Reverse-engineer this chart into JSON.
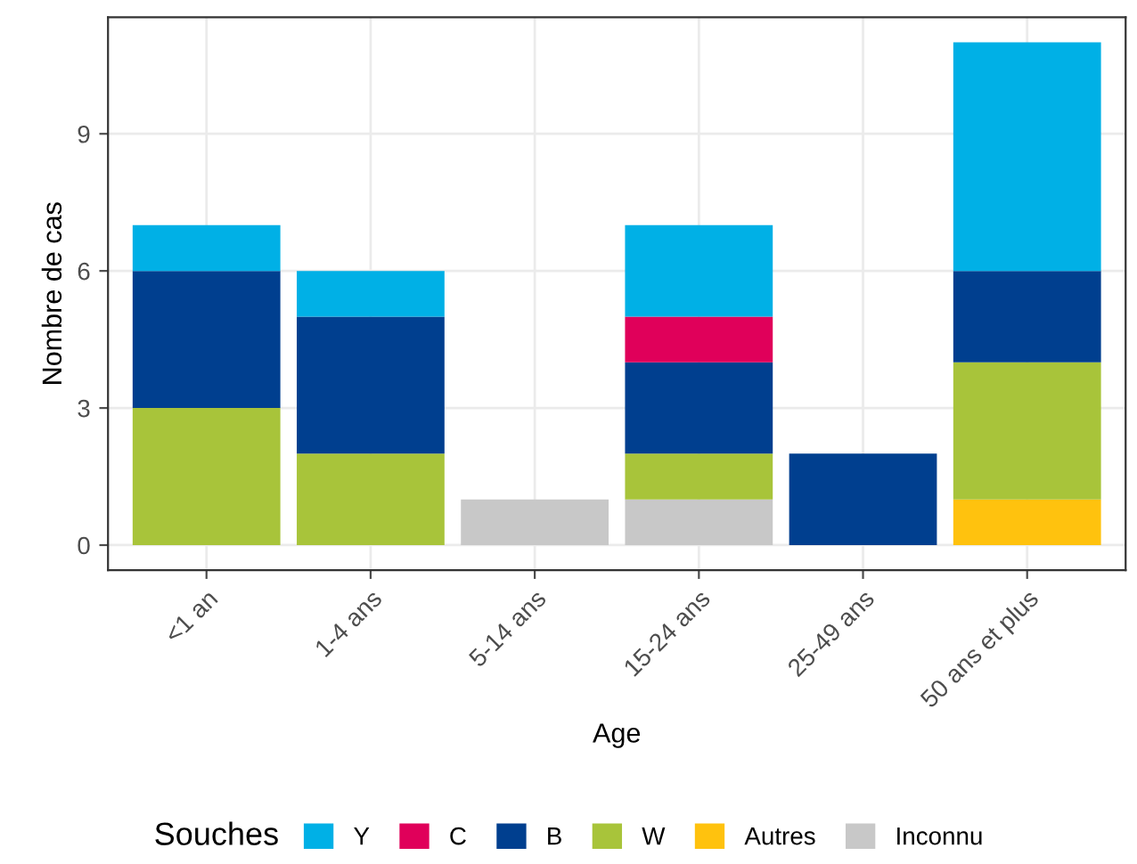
{
  "chart_data": {
    "type": "bar",
    "stacked": true,
    "xlabel": "Age",
    "ylabel": "Nombre de cas",
    "legend_title": "Souches",
    "categories": [
      "<1 an",
      "1-4 ans",
      "5-14 ans",
      "15-24 ans",
      "25-49 ans",
      "50 ans et plus"
    ],
    "series": [
      {
        "name": "Inconnu",
        "color": "#c8c8c8",
        "values": [
          0,
          0,
          1,
          1,
          0,
          0
        ]
      },
      {
        "name": "Autres",
        "color": "#ffc20e",
        "values": [
          0,
          0,
          0,
          0,
          0,
          1
        ]
      },
      {
        "name": "W",
        "color": "#a8c43a",
        "values": [
          3,
          2,
          0,
          1,
          0,
          3
        ]
      },
      {
        "name": "B",
        "color": "#003f8f",
        "values": [
          3,
          3,
          0,
          2,
          2,
          2
        ]
      },
      {
        "name": "C",
        "color": "#e0005a",
        "values": [
          0,
          0,
          0,
          1,
          0,
          0
        ]
      },
      {
        "name": "Y",
        "color": "#00b0e6",
        "values": [
          1,
          1,
          0,
          2,
          0,
          5
        ]
      }
    ],
    "ylim": [
      -0.55,
      11.55
    ],
    "yticks": [
      0,
      3,
      6,
      9
    ],
    "grid": true,
    "legend": "bottom"
  }
}
